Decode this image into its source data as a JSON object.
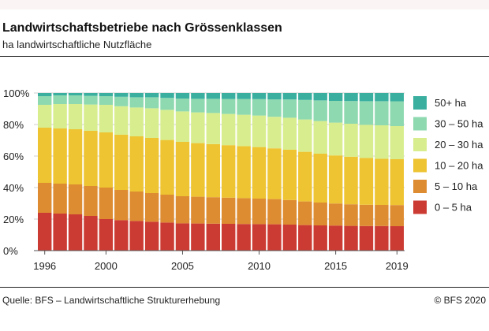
{
  "header": {
    "title": "Landwirtschaftsbetriebe nach Grössenklassen",
    "subtitle": "ha landwirtschaftliche Nutzfläche"
  },
  "footer": {
    "source": "Quelle: BFS – Landwirtschaftliche Strukturerhebung",
    "copyright": "© BFS 2020"
  },
  "chart_data": {
    "type": "bar",
    "stacked": true,
    "normalized": true,
    "title": "Landwirtschaftsbetriebe nach Grössenklassen",
    "subtitle": "ha landwirtschaftliche Nutzfläche",
    "xlabel": "",
    "ylabel": "",
    "ylim": [
      0,
      100
    ],
    "ytick_labels": [
      "0%",
      "20%",
      "40%",
      "60%",
      "80%",
      "100%"
    ],
    "xtick_labels": [
      "1996",
      "2000",
      "2005",
      "2010",
      "2015",
      "2019"
    ],
    "grid": true,
    "legend_position": "right",
    "categories": [
      "1996",
      "1997",
      "1998",
      "1999",
      "2000",
      "2001",
      "2002",
      "2003",
      "2004",
      "2005",
      "2006",
      "2007",
      "2008",
      "2009",
      "2010",
      "2011",
      "2012",
      "2013",
      "2014",
      "2015",
      "2016",
      "2017",
      "2018",
      "2019"
    ],
    "series": [
      {
        "name": "0 – 5 ha",
        "color": "#cc3b33",
        "values": [
          24,
          23.5,
          23,
          22,
          20,
          19.3,
          18.8,
          18.3,
          17.8,
          17.3,
          17.2,
          17.1,
          17,
          16.9,
          16.8,
          16.7,
          16.5,
          16.2,
          16,
          15.9,
          15.7,
          15.6,
          15.6,
          15.5
        ]
      },
      {
        "name": "5 – 10 ha",
        "color": "#de8c32",
        "values": [
          19,
          19,
          19,
          19,
          20,
          19.2,
          18.7,
          18.2,
          17.7,
          17.2,
          17,
          16.8,
          16.6,
          16.4,
          16.2,
          16,
          15.6,
          15,
          14.5,
          14,
          13.7,
          13.5,
          13.4,
          13.4
        ]
      },
      {
        "name": "10 – 20 ha",
        "color": "#eec432",
        "values": [
          35,
          35,
          35,
          35,
          35,
          35,
          35,
          35,
          34.7,
          34.5,
          34,
          33.7,
          33.3,
          33,
          32.7,
          32.2,
          31.9,
          31.5,
          31,
          30.5,
          30.2,
          29.7,
          29.3,
          29.1
        ]
      },
      {
        "name": "20 – 30 ha",
        "color": "#d8ee8e",
        "values": [
          14.5,
          15.5,
          16,
          16.7,
          17.5,
          18.1,
          18.3,
          18.8,
          19.1,
          19.3,
          19.5,
          19.7,
          19.8,
          19.9,
          20,
          20,
          20.3,
          20.5,
          20.7,
          20.8,
          20.9,
          21,
          21.2,
          21
        ]
      },
      {
        "name": "30 – 50 ha",
        "color": "#8ed9b0",
        "values": [
          5.5,
          5.5,
          5.5,
          5.5,
          5.5,
          6,
          6.5,
          7,
          7.6,
          8.2,
          8.6,
          9,
          9.5,
          10,
          10.4,
          11,
          11.6,
          12.4,
          13.1,
          13.8,
          14.4,
          15,
          15.3,
          15.7
        ]
      },
      {
        "name": "50+ ha",
        "color": "#3aafa0",
        "values": [
          2,
          1.5,
          1.5,
          1.8,
          2,
          2.4,
          2.7,
          2.7,
          3.1,
          3.5,
          3.7,
          3.7,
          3.8,
          3.8,
          3.9,
          4.1,
          4.1,
          4.4,
          4.7,
          5,
          5.1,
          5.2,
          5.2,
          5.3
        ]
      }
    ]
  }
}
